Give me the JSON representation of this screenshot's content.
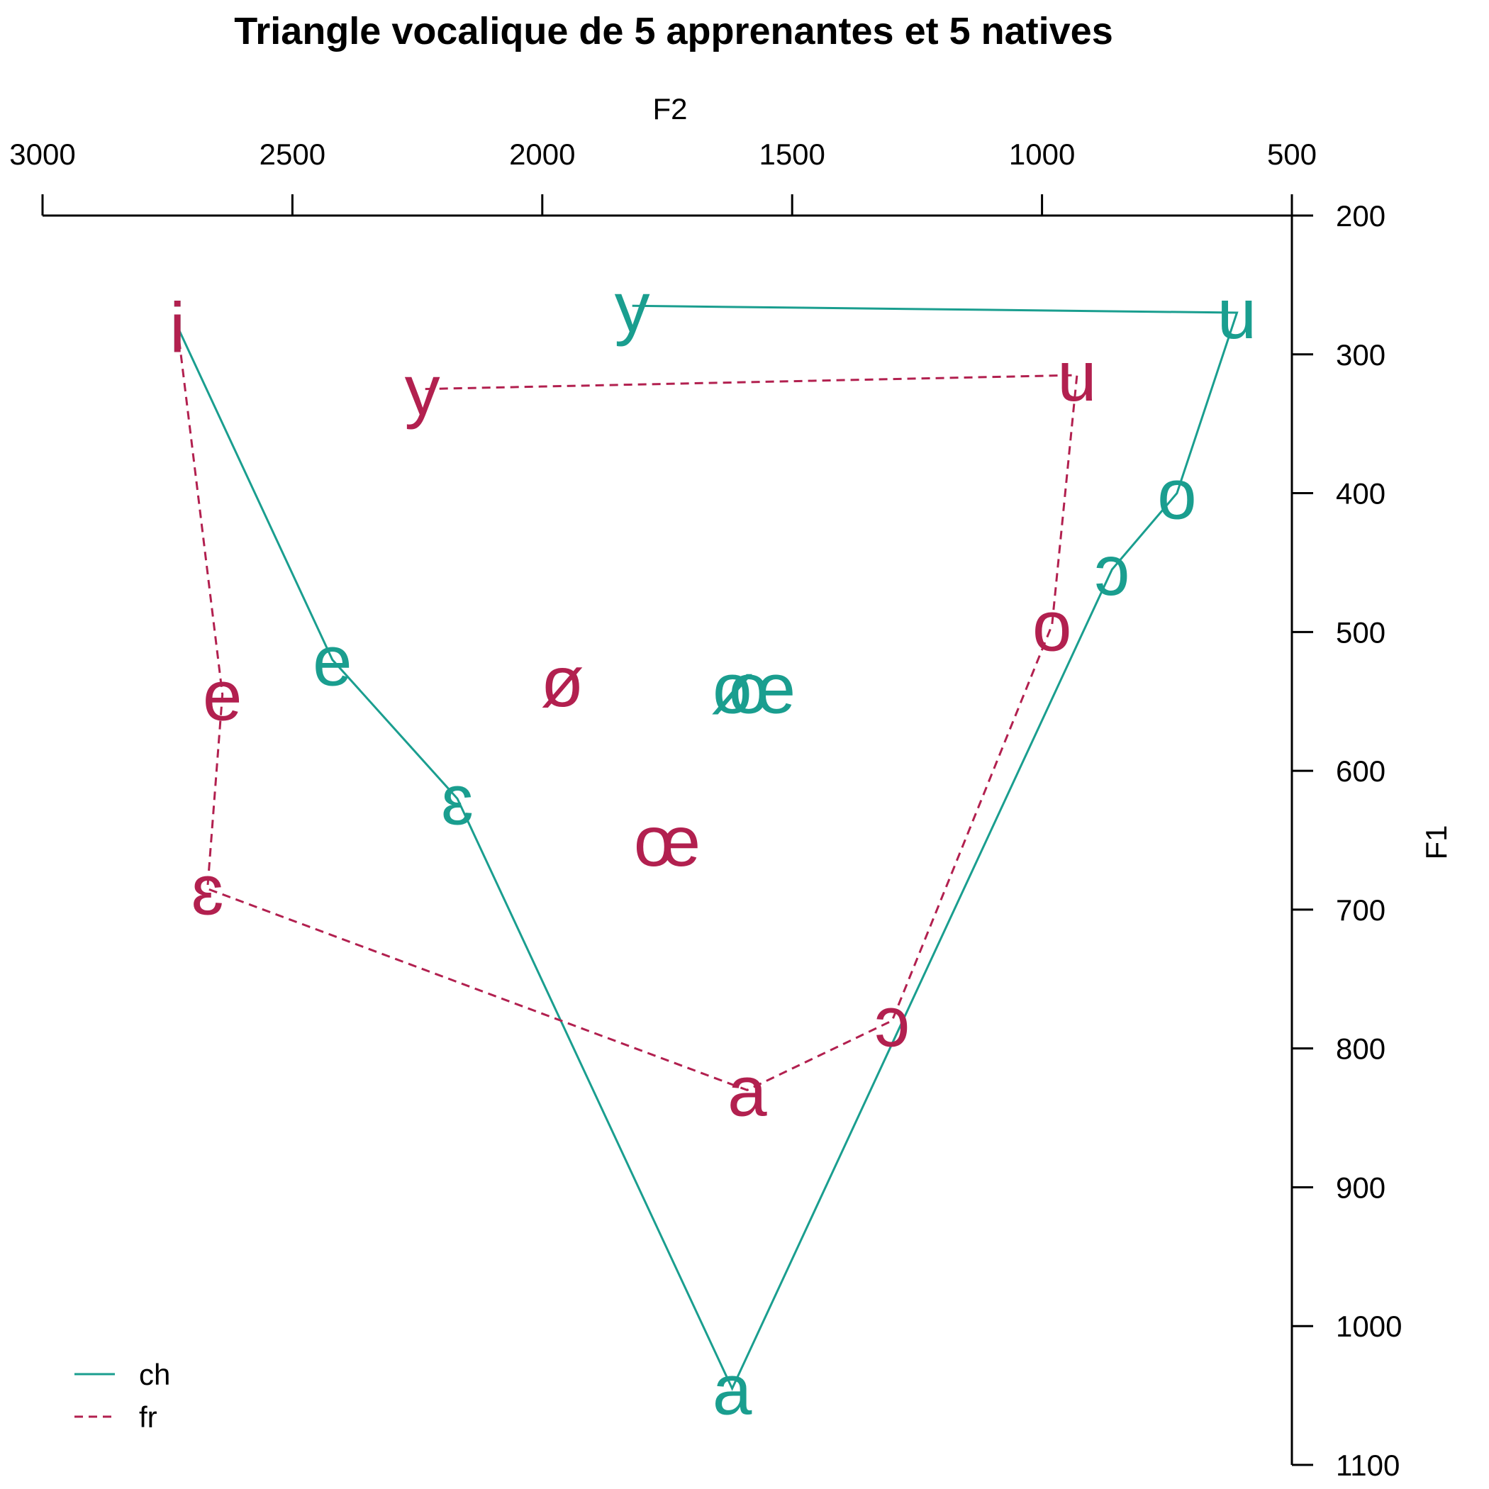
{
  "chart_data": {
    "type": "scatter",
    "title": "Triangle vocalique de 5 apprenantes et 5 natives",
    "xlabel": "F2",
    "ylabel": "F1",
    "xlim": [
      3000,
      500
    ],
    "ylim": [
      200,
      1100
    ],
    "x_ticks": [
      "3000",
      "2500",
      "2000",
      "1500",
      "1000",
      "500"
    ],
    "y_ticks": [
      "200",
      "300",
      "400",
      "500",
      "600",
      "700",
      "800",
      "900",
      "1000",
      "1100"
    ],
    "legend_position": "bottom-left",
    "series": [
      {
        "name": "ch",
        "color": "#1a9e8f",
        "line_style": "solid",
        "points": [
          {
            "label": "i",
            "x": 2730,
            "y": 280
          },
          {
            "label": "e",
            "x": 2420,
            "y": 520
          },
          {
            "label": "ɛ",
            "x": 2170,
            "y": 620
          },
          {
            "label": "a",
            "x": 1620,
            "y": 1045
          },
          {
            "label": "ɔ",
            "x": 860,
            "y": 455
          },
          {
            "label": "o",
            "x": 730,
            "y": 400
          },
          {
            "label": "u",
            "x": 610,
            "y": 270
          },
          {
            "label": "y",
            "x": 1820,
            "y": 265
          },
          {
            "label": "ø",
            "x": 1620,
            "y": 540
          },
          {
            "label": "œ",
            "x": 1560,
            "y": 540
          }
        ],
        "polyline": [
          "i",
          "e",
          "ɛ",
          "a",
          "ɔ",
          "o",
          "u",
          "y"
        ]
      },
      {
        "name": "fr",
        "color": "#b2204f",
        "line_style": "dashed",
        "points": [
          {
            "label": "i",
            "x": 2730,
            "y": 280
          },
          {
            "label": "e",
            "x": 2640,
            "y": 545
          },
          {
            "label": "ɛ",
            "x": 2670,
            "y": 685
          },
          {
            "label": "a",
            "x": 1590,
            "y": 830
          },
          {
            "label": "ɔ",
            "x": 1300,
            "y": 780
          },
          {
            "label": "o",
            "x": 980,
            "y": 495
          },
          {
            "label": "u",
            "x": 930,
            "y": 315
          },
          {
            "label": "y",
            "x": 2240,
            "y": 325
          },
          {
            "label": "ø",
            "x": 1960,
            "y": 535
          },
          {
            "label": "œ",
            "x": 1750,
            "y": 650
          }
        ],
        "polyline": [
          "i",
          "e",
          "ɛ",
          "a",
          "ɔ",
          "o",
          "u",
          "y"
        ]
      }
    ]
  }
}
